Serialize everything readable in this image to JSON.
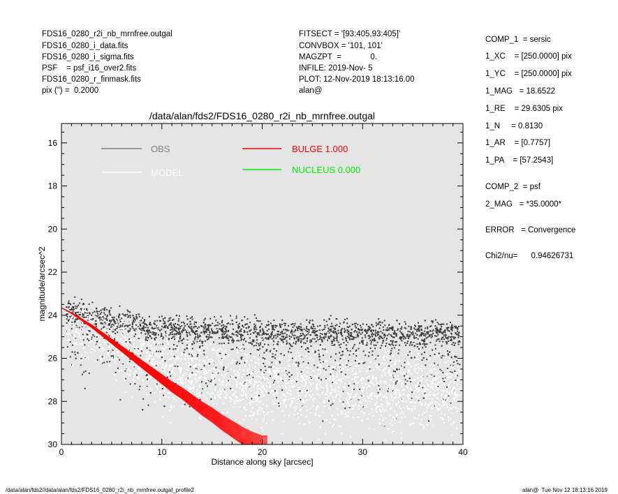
{
  "header_left": [
    "FDS16_0280_r2i_nb_mrnfree.outgal",
    "FDS16_0280_i_data.fits",
    "FDS16_0280_i_sigma.fits",
    "PSF    = psf_i16_over2.fits",
    "FDS16_0280_r_finmask.fits",
    "pix (\") =  0.2000"
  ],
  "header_mid": [
    "FITSECT = '[93:405,93:405]'",
    "CONVBOX = '101, 101'",
    "MAGZPT  =             0.",
    "INFILE: 2019-Nov- 5",
    "PLOT: 12-Nov-2019 18:13:16.00",
    "alan@"
  ],
  "params": [
    "COMP_1  = sersic",
    "1_XC    = [250.0000] pix",
    "1_YC    = [250.0000] pix",
    "1_MAG   = 18.6522",
    "1_RE    = 29.6305 pix",
    "1_N     = 0.8130",
    "1_AR    = [0.7757]",
    "1_PA    = [57.2543]",
    "COMP_2  = psf",
    "2_MAG   = *35.0000*",
    "ERROR   = Convergence",
    "Chi2/nu=      0.94626731"
  ],
  "footer_left": "/data/alan/fds2//data/alan/fds2/FDS16_0280_r2i_nb_mrnfree.outgal_profile2",
  "footer_right": "alan@  Tue Nov 12 18:13:16 2019",
  "colors": {
    "plot_bg": "#e5e5e5",
    "obs": "#3a3a3a",
    "model": "#ffffff",
    "bulge": "#ff0000",
    "nucleus": "#00ee00"
  },
  "chart_data": {
    "type": "scatter",
    "title": "/data/alan/fds2/FDS16_0280_r2i_nb_mrnfree.outgal",
    "xlabel": "Distance along sky [arcsec]",
    "ylabel": "magnitude/arcsec^2",
    "xlim": [
      0,
      40
    ],
    "ylim": [
      30,
      15.1
    ],
    "y_inverted": true,
    "x_ticks": [
      0,
      10,
      20,
      30,
      40
    ],
    "y_ticks": [
      16,
      18,
      20,
      22,
      24,
      26,
      28,
      30
    ],
    "grid": false,
    "legend": [
      {
        "label": "OBS",
        "color": "#808080"
      },
      {
        "label": "MODEL",
        "color": "#ffffff"
      },
      {
        "label": "BULGE  1.000",
        "color": "#ff0000"
      },
      {
        "label": "NUCLEUS  0.000",
        "color": "#00ee00"
      }
    ],
    "legend_position": "top",
    "series": [
      {
        "name": "OBS",
        "description_points": "dense cloud of points",
        "x": [
          0.5,
          2,
          4,
          6,
          8,
          10,
          12,
          15,
          18,
          20,
          25,
          30,
          35,
          39.5
        ],
        "y": [
          23.9,
          23.8,
          24.1,
          24.3,
          24.5,
          24.6,
          24.6,
          24.7,
          24.7,
          24.8,
          24.8,
          24.8,
          24.9,
          24.8
        ]
      },
      {
        "name": "MODEL",
        "x": [
          0.5,
          2,
          4,
          6,
          8,
          10,
          12,
          15,
          18,
          20,
          25,
          30,
          35,
          39.5
        ],
        "y": [
          24.0,
          24.1,
          24.6,
          25.2,
          25.8,
          26.3,
          26.6,
          26.9,
          27.1,
          27.2,
          27.3,
          27.4,
          27.5,
          27.5
        ]
      },
      {
        "name": "BULGE  1.000",
        "x": [
          0,
          1,
          2,
          3,
          4,
          5,
          6,
          7,
          8,
          9,
          10,
          11,
          12,
          13,
          14,
          15,
          16,
          17,
          18,
          19,
          20,
          20.6
        ],
        "y": [
          23.65,
          23.9,
          24.2,
          24.5,
          24.85,
          25.2,
          25.55,
          25.9,
          26.25,
          26.6,
          26.95,
          27.3,
          27.6,
          27.95,
          28.3,
          28.6,
          28.95,
          29.25,
          29.55,
          29.8,
          30.0,
          30.0
        ]
      }
    ]
  }
}
